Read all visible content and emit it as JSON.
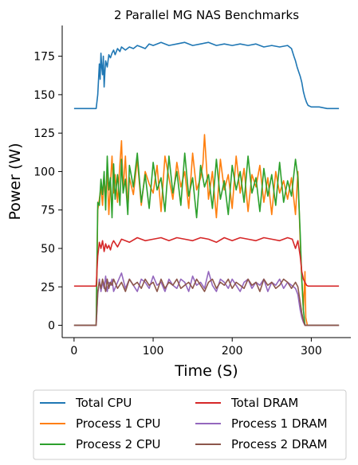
{
  "chart_data": {
    "type": "line",
    "title": "2 Parallel MG NAS Benchmarks",
    "xlabel": "Time (S)",
    "ylabel": "Power (W)",
    "xlim": [
      -15,
      350
    ],
    "ylim": [
      -8,
      195
    ],
    "xticks": [
      0,
      100,
      200,
      300
    ],
    "yticks": [
      0,
      25,
      50,
      75,
      100,
      125,
      150,
      175
    ],
    "grid": false,
    "legend_placement": "bottom",
    "series": [
      {
        "name": "Total CPU",
        "color": "#1f77b4",
        "x": [
          0,
          10,
          20,
          28,
          30,
          32,
          33,
          34,
          35,
          36,
          37,
          38,
          39,
          40,
          42,
          44,
          46,
          48,
          50,
          52,
          55,
          58,
          60,
          65,
          70,
          75,
          80,
          85,
          90,
          95,
          100,
          110,
          120,
          130,
          140,
          150,
          160,
          170,
          180,
          190,
          200,
          210,
          220,
          230,
          240,
          250,
          260,
          270,
          275,
          278,
          280,
          282,
          284,
          286,
          288,
          290,
          292,
          294,
          296,
          300,
          310,
          320,
          335
        ],
        "y": [
          141,
          141,
          141,
          141,
          150,
          170,
          160,
          177,
          168,
          163,
          175,
          155,
          165,
          172,
          168,
          176,
          174,
          177,
          179,
          176,
          180,
          178,
          181,
          179,
          181,
          180,
          182,
          181,
          180,
          183,
          182,
          184,
          182,
          183,
          184,
          182,
          183,
          184,
          182,
          183,
          182,
          183,
          182,
          183,
          181,
          182,
          181,
          182,
          180,
          175,
          172,
          168,
          165,
          162,
          158,
          152,
          148,
          145,
          143,
          142,
          142,
          141,
          141
        ]
      },
      {
        "name": "Process 1 CPU",
        "color": "#ff7f0e",
        "x": [
          0,
          10,
          20,
          28,
          30,
          32,
          34,
          36,
          38,
          40,
          42,
          44,
          46,
          48,
          50,
          52,
          55,
          58,
          60,
          62,
          65,
          68,
          70,
          75,
          80,
          85,
          90,
          95,
          100,
          105,
          110,
          115,
          120,
          125,
          130,
          135,
          140,
          145,
          150,
          155,
          160,
          163,
          165,
          170,
          175,
          180,
          185,
          190,
          195,
          200,
          205,
          210,
          215,
          220,
          225,
          230,
          235,
          240,
          245,
          250,
          255,
          260,
          265,
          270,
          275,
          280,
          283,
          286,
          288,
          290,
          292,
          293,
          295,
          300,
          310,
          320,
          335
        ],
        "y": [
          0,
          0,
          0,
          0,
          75,
          82,
          90,
          78,
          95,
          85,
          100,
          72,
          92,
          110,
          86,
          98,
          80,
          105,
          120,
          88,
          110,
          75,
          96,
          85,
          108,
          78,
          100,
          92,
          86,
          104,
          74,
          110,
          96,
          82,
          106,
          90,
          100,
          76,
          112,
          88,
          96,
          105,
          124,
          82,
          100,
          70,
          108,
          88,
          98,
          76,
          110,
          86,
          102,
          74,
          98,
          90,
          104,
          80,
          96,
          72,
          100,
          86,
          94,
          82,
          96,
          72,
          100,
          55,
          30,
          10,
          35,
          5,
          0,
          0,
          0,
          0,
          0
        ]
      },
      {
        "name": "Process 2 CPU",
        "color": "#2ca02c",
        "x": [
          0,
          10,
          20,
          28,
          30,
          32,
          34,
          36,
          38,
          40,
          42,
          44,
          46,
          48,
          50,
          52,
          55,
          58,
          60,
          62,
          65,
          68,
          70,
          75,
          80,
          85,
          90,
          95,
          100,
          105,
          110,
          115,
          120,
          125,
          130,
          135,
          140,
          145,
          150,
          155,
          160,
          165,
          170,
          175,
          180,
          185,
          190,
          195,
          200,
          205,
          210,
          215,
          220,
          225,
          230,
          235,
          240,
          245,
          250,
          255,
          260,
          265,
          270,
          275,
          280,
          283,
          286,
          288,
          290,
          292,
          295,
          300,
          310,
          320,
          335
        ],
        "y": [
          0,
          0,
          0,
          0,
          80,
          78,
          95,
          85,
          100,
          75,
          110,
          88,
          96,
          70,
          105,
          82,
          98,
          78,
          108,
          86,
          95,
          72,
          104,
          90,
          112,
          80,
          98,
          76,
          106,
          88,
          96,
          74,
          110,
          86,
          100,
          78,
          112,
          84,
          96,
          70,
          104,
          90,
          98,
          76,
          108,
          82,
          94,
          72,
          104,
          88,
          100,
          80,
          110,
          86,
          96,
          74,
          102,
          84,
          98,
          78,
          106,
          80,
          94,
          84,
          108,
          96,
          60,
          30,
          10,
          0,
          0,
          0,
          0,
          0,
          0
        ]
      },
      {
        "name": "Total DRAM",
        "color": "#d62728",
        "x": [
          0,
          10,
          20,
          28,
          30,
          32,
          34,
          36,
          38,
          40,
          42,
          44,
          46,
          48,
          50,
          55,
          60,
          70,
          80,
          90,
          100,
          110,
          120,
          130,
          140,
          150,
          160,
          170,
          180,
          190,
          200,
          210,
          220,
          230,
          240,
          250,
          260,
          270,
          276,
          280,
          283,
          286,
          288,
          290,
          292,
          294,
          296,
          300,
          310,
          320,
          335
        ],
        "y": [
          25.5,
          25.5,
          25.5,
          25.5,
          45,
          54,
          50,
          55,
          48,
          53,
          50,
          52,
          49,
          53,
          55,
          51,
          56,
          54,
          57,
          55,
          56,
          57,
          55,
          57,
          56,
          55,
          57,
          56,
          54,
          57,
          55,
          57,
          56,
          55,
          57,
          56,
          55,
          57,
          56,
          50,
          55,
          45,
          35,
          30,
          28,
          26,
          25.5,
          25.5,
          25.5,
          25.5,
          25.5
        ]
      },
      {
        "name": "Process 1 DRAM",
        "color": "#9467bd",
        "x": [
          0,
          10,
          20,
          28,
          30,
          32,
          34,
          36,
          38,
          40,
          42,
          44,
          46,
          48,
          50,
          55,
          60,
          65,
          70,
          75,
          80,
          85,
          90,
          95,
          100,
          105,
          110,
          115,
          120,
          125,
          130,
          135,
          140,
          145,
          150,
          155,
          160,
          165,
          170,
          175,
          180,
          185,
          190,
          195,
          200,
          205,
          210,
          215,
          220,
          225,
          230,
          235,
          240,
          245,
          250,
          255,
          260,
          265,
          270,
          275,
          280,
          283,
          286,
          288,
          290,
          292,
          295,
          300,
          310,
          320,
          335
        ],
        "y": [
          0,
          0,
          0,
          0,
          20,
          30,
          22,
          28,
          24,
          32,
          22,
          28,
          26,
          30,
          22,
          28,
          34,
          24,
          30,
          26,
          22,
          30,
          28,
          24,
          32,
          26,
          28,
          22,
          30,
          26,
          24,
          30,
          28,
          22,
          32,
          26,
          28,
          24,
          35,
          26,
          22,
          30,
          28,
          24,
          30,
          26,
          22,
          28,
          30,
          24,
          28,
          26,
          30,
          22,
          28,
          26,
          30,
          24,
          28,
          26,
          24,
          20,
          10,
          5,
          2,
          0,
          0,
          0,
          0,
          0,
          0
        ]
      },
      {
        "name": "Process 2 DRAM",
        "color": "#8c564b",
        "x": [
          0,
          10,
          20,
          28,
          30,
          32,
          34,
          36,
          38,
          40,
          42,
          44,
          46,
          48,
          50,
          55,
          60,
          65,
          70,
          75,
          80,
          85,
          90,
          95,
          100,
          105,
          110,
          115,
          120,
          125,
          130,
          135,
          140,
          145,
          150,
          155,
          160,
          165,
          170,
          175,
          180,
          185,
          190,
          195,
          200,
          205,
          210,
          215,
          220,
          225,
          230,
          235,
          240,
          245,
          250,
          255,
          260,
          265,
          270,
          275,
          280,
          283,
          286,
          288,
          290,
          292,
          295,
          300,
          310,
          320,
          335
        ],
        "y": [
          0,
          0,
          0,
          0,
          22,
          28,
          24,
          30,
          26,
          22,
          30,
          24,
          28,
          26,
          30,
          24,
          28,
          22,
          30,
          26,
          28,
          24,
          30,
          26,
          28,
          22,
          30,
          24,
          28,
          26,
          30,
          24,
          26,
          28,
          24,
          30,
          26,
          22,
          28,
          30,
          24,
          28,
          26,
          30,
          24,
          28,
          26,
          24,
          30,
          26,
          28,
          22,
          30,
          26,
          28,
          24,
          26,
          30,
          28,
          24,
          28,
          25,
          15,
          8,
          3,
          0,
          0,
          0,
          0,
          0,
          0
        ]
      }
    ]
  }
}
